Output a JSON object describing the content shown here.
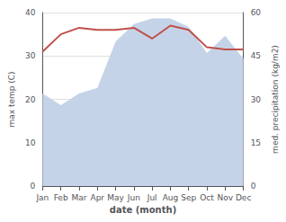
{
  "chart_data": {
    "type": "line",
    "categories": [
      "Jan",
      "Feb",
      "Mar",
      "Apr",
      "May",
      "Jun",
      "Jul",
      "Aug",
      "Sep",
      "Oct",
      "Nov",
      "Dec"
    ],
    "xlabel": "date (month)",
    "ylabel": "max temp (C)",
    "y2label": "med. precipitation (kg/m2)",
    "series": [
      {
        "type": "area",
        "axis": "y2",
        "color": "#c5d3e8",
        "values": [
          32,
          28,
          32,
          34,
          50,
          56,
          58,
          58,
          55,
          46,
          52,
          44
        ]
      },
      {
        "type": "line",
        "color": "#c0504d",
        "values": [
          31,
          35,
          36.5,
          36,
          36,
          36.5,
          34,
          37,
          36,
          32,
          31.5,
          31.5
        ]
      }
    ],
    "ylim": [
      0,
      40
    ],
    "yticks": [
      0,
      10,
      20,
      30,
      40
    ],
    "y2lim": [
      0,
      60
    ],
    "y2ticks": [
      0,
      15,
      30,
      45,
      60
    ],
    "grid": true
  }
}
